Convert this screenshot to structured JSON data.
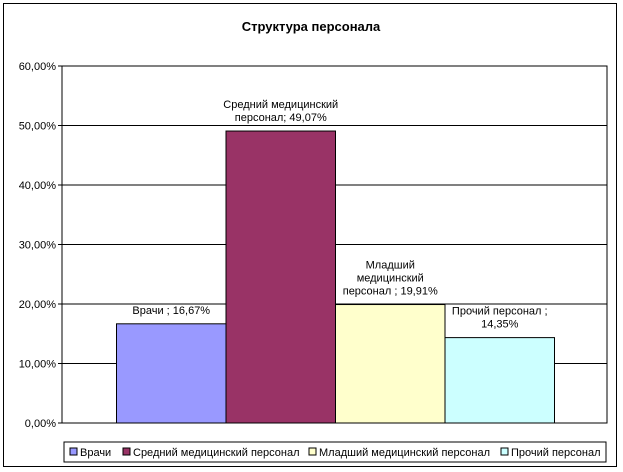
{
  "chart_data": {
    "type": "bar",
    "title": "Структура персонала",
    "xlabel": "",
    "ylabel": "",
    "ylim": [
      0,
      60
    ],
    "y_ticks": [
      "0,00%",
      "10,00%",
      "20,00%",
      "30,00%",
      "40,00%",
      "50,00%",
      "60,00%"
    ],
    "y_tick_values": [
      0,
      10,
      20,
      30,
      40,
      50,
      60
    ],
    "grid": true,
    "legend_position": "bottom",
    "series": [
      {
        "name": "Врачи",
        "value": 16.67,
        "label": "Врачи ; 16,67%",
        "label_lines": [
          "Врачи ; 16,67%"
        ],
        "color": "#9999ff"
      },
      {
        "name": "Средний медицинский персонал",
        "value": 49.07,
        "label": "Средний медицинский персонал; 49,07%",
        "label_lines": [
          "Средний медицинский",
          "персонал; 49,07%"
        ],
        "color": "#993366"
      },
      {
        "name": "Младший медицинский персонал",
        "value": 19.91,
        "label": "Младший медицинский персонал ; 19,91%",
        "label_lines": [
          "Младший",
          "медицинский",
          "персонал ; 19,91%"
        ],
        "color": "#ffffcc"
      },
      {
        "name": "Прочий персонал",
        "value": 14.35,
        "label": "Прочий персонал ; 14,35%",
        "label_lines": [
          "Прочий персонал ;",
          "14,35%"
        ],
        "color": "#ccffff"
      }
    ]
  }
}
